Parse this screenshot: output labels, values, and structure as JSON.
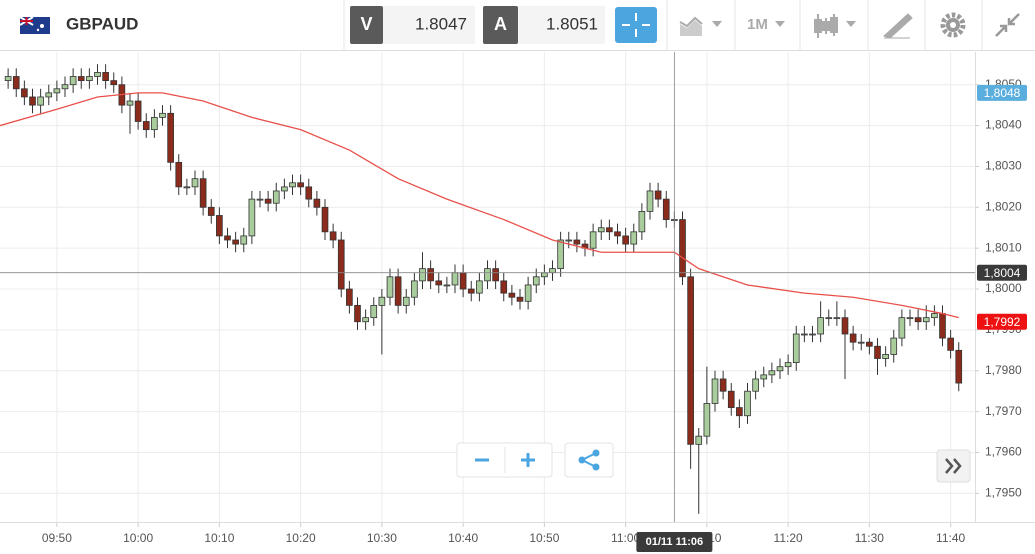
{
  "toolbar": {
    "symbol": "GBPAUD",
    "bid_label": "V",
    "bid": "1.8047",
    "ask_label": "A",
    "ask": "1.8051",
    "timeframe": "1M"
  },
  "chart_data": {
    "type": "candlestick",
    "x": [
      "09:44",
      "09:45",
      "09:46",
      "09:47",
      "09:48",
      "09:49",
      "09:50",
      "09:51",
      "09:52",
      "09:53",
      "09:54",
      "09:55",
      "09:56",
      "09:57",
      "09:58",
      "09:59",
      "10:00",
      "10:01",
      "10:02",
      "10:03",
      "10:04",
      "10:05",
      "10:06",
      "10:07",
      "10:08",
      "10:09",
      "10:10",
      "10:11",
      "10:12",
      "10:13",
      "10:14",
      "10:15",
      "10:16",
      "10:17",
      "10:18",
      "10:19",
      "10:20",
      "10:21",
      "10:22",
      "10:23",
      "10:24",
      "10:25",
      "10:26",
      "10:27",
      "10:28",
      "10:29",
      "10:30",
      "10:31",
      "10:32",
      "10:33",
      "10:34",
      "10:35",
      "10:36",
      "10:37",
      "10:38",
      "10:39",
      "10:40",
      "10:41",
      "10:42",
      "10:43",
      "10:44",
      "10:45",
      "10:46",
      "10:47",
      "10:48",
      "10:49",
      "10:50",
      "10:51",
      "10:52",
      "10:53",
      "10:54",
      "10:55",
      "10:56",
      "10:57",
      "10:58",
      "10:59",
      "11:00",
      "11:01",
      "11:02",
      "11:03",
      "11:04",
      "11:05",
      "11:06",
      "11:07",
      "11:08",
      "11:09",
      "11:10",
      "11:11",
      "11:12",
      "11:13",
      "11:14",
      "11:15",
      "11:16",
      "11:17",
      "11:18",
      "11:19",
      "11:20",
      "11:21",
      "11:22",
      "11:23",
      "11:24",
      "11:25",
      "11:26",
      "11:27",
      "11:28",
      "11:29",
      "11:30",
      "11:31",
      "11:32",
      "11:33",
      "11:34",
      "11:35",
      "11:36",
      "11:37",
      "11:38",
      "11:39",
      "11:40",
      "11:41"
    ],
    "open": [
      1.8051,
      1.8052,
      1.8049,
      1.8047,
      1.8045,
      1.8047,
      1.8048,
      1.8049,
      1.805,
      1.8052,
      1.8051,
      1.8052,
      1.8053,
      1.8051,
      1.805,
      1.8045,
      1.8046,
      1.8041,
      1.8039,
      1.8042,
      1.8043,
      1.8031,
      1.8025,
      1.8025,
      1.8027,
      1.802,
      1.8018,
      1.8013,
      1.8012,
      1.8011,
      1.8013,
      1.8022,
      1.8022,
      1.8021,
      1.8024,
      1.8025,
      1.8026,
      1.8025,
      1.8022,
      1.802,
      1.8014,
      1.8012,
      1.8,
      1.7996,
      1.7992,
      1.7993,
      1.7996,
      1.7998,
      1.8003,
      1.7996,
      1.7998,
      1.8002,
      1.8005,
      1.8002,
      1.8001,
      1.8001,
      1.8004,
      1.8,
      1.7999,
      1.8002,
      1.8005,
      1.8002,
      1.7999,
      1.7998,
      1.7997,
      1.8001,
      1.8003,
      1.8004,
      1.8005,
      1.8012,
      1.8012,
      1.8011,
      1.801,
      1.8014,
      1.8015,
      1.8014,
      1.8013,
      1.8011,
      1.8014,
      1.8019,
      1.8024,
      1.8022,
      1.8017,
      1.8017,
      1.8003,
      1.7962,
      1.7964,
      1.7972,
      1.7978,
      1.7975,
      1.7971,
      1.7969,
      1.7975,
      1.7978,
      1.7979,
      1.798,
      1.7981,
      1.7982,
      1.7989,
      1.7989,
      1.7989,
      1.7993,
      1.7993,
      1.7993,
      1.7989,
      1.7987,
      1.7987,
      1.7986,
      1.7983,
      1.7984,
      1.7988,
      1.7993,
      1.7993,
      1.7992,
      1.7993,
      1.7994,
      1.7988,
      1.7985
    ],
    "high": [
      1.8054,
      1.8054,
      1.8051,
      1.8049,
      1.8049,
      1.805,
      1.8051,
      1.8052,
      1.8054,
      1.8054,
      1.8054,
      1.8055,
      1.8055,
      1.8053,
      1.8052,
      1.8048,
      1.8048,
      1.8043,
      1.8044,
      1.8045,
      1.8045,
      1.8033,
      1.8027,
      1.8029,
      1.8029,
      1.8022,
      1.802,
      1.8015,
      1.8014,
      1.8015,
      1.8024,
      1.8024,
      1.8024,
      1.8026,
      1.8027,
      1.8028,
      1.8028,
      1.8027,
      1.8024,
      1.8022,
      1.8016,
      1.8014,
      1.8002,
      1.7998,
      1.7995,
      1.7998,
      1.8,
      1.8005,
      1.8005,
      1.8,
      1.8004,
      1.8009,
      1.8007,
      1.8004,
      1.8003,
      1.8006,
      1.8006,
      1.8002,
      1.8004,
      1.8007,
      1.8007,
      1.8004,
      1.8001,
      1.8,
      1.8003,
      1.8005,
      1.8006,
      1.8007,
      1.8014,
      1.8014,
      1.8014,
      1.8012,
      1.8016,
      1.8017,
      1.8017,
      1.8016,
      1.8015,
      1.8016,
      1.8021,
      1.8026,
      1.8026,
      1.8024,
      1.8019,
      1.8019,
      1.8005,
      1.7966,
      1.7981,
      1.798,
      1.798,
      1.7977,
      1.7973,
      1.7977,
      1.798,
      1.7981,
      1.7982,
      1.7983,
      1.7984,
      1.7991,
      1.7991,
      1.7991,
      1.7997,
      1.7995,
      1.7997,
      1.7995,
      1.7991,
      1.7989,
      1.7988,
      1.7988,
      1.7986,
      1.799,
      1.7995,
      1.7995,
      1.7995,
      1.7996,
      1.7996,
      1.7996,
      1.799,
      1.7987
    ],
    "low": [
      1.8049,
      1.8047,
      1.8045,
      1.8043,
      1.8043,
      1.8045,
      1.8046,
      1.8047,
      1.8048,
      1.8049,
      1.8049,
      1.805,
      1.8049,
      1.8048,
      1.8043,
      1.8038,
      1.8039,
      1.8037,
      1.8037,
      1.804,
      1.8029,
      1.8023,
      1.8023,
      1.8023,
      1.8018,
      1.8016,
      1.8011,
      1.801,
      1.8009,
      1.8009,
      1.8011,
      1.802,
      1.8019,
      1.8019,
      1.8022,
      1.8023,
      1.8023,
      1.802,
      1.8018,
      1.8012,
      1.801,
      1.7998,
      1.7994,
      1.799,
      1.799,
      1.7991,
      1.7984,
      1.7996,
      1.7994,
      1.7994,
      1.7996,
      1.8,
      1.8,
      1.7999,
      1.7999,
      1.7999,
      1.7998,
      1.7997,
      1.7997,
      1.8,
      1.8,
      1.7997,
      1.7996,
      1.7995,
      1.7995,
      1.7999,
      1.8001,
      1.8002,
      1.8003,
      1.801,
      1.8009,
      1.8008,
      1.8008,
      1.8012,
      1.8012,
      1.8011,
      1.8009,
      1.8009,
      1.8012,
      1.8017,
      1.802,
      1.8015,
      1.8015,
      1.8001,
      1.7956,
      1.7945,
      1.7962,
      1.797,
      1.7973,
      1.7969,
      1.7966,
      1.7967,
      1.7973,
      1.7976,
      1.7977,
      1.7978,
      1.7979,
      1.798,
      1.7987,
      1.7987,
      1.7987,
      1.7991,
      1.7991,
      1.7978,
      1.7985,
      1.7985,
      1.7984,
      1.7979,
      1.7981,
      1.7982,
      1.7986,
      1.7991,
      1.799,
      1.799,
      1.7991,
      1.7986,
      1.7983,
      1.7975
    ],
    "close": [
      1.8052,
      1.8049,
      1.8047,
      1.8045,
      1.8047,
      1.8048,
      1.8049,
      1.805,
      1.8052,
      1.8051,
      1.8052,
      1.8053,
      1.8051,
      1.805,
      1.8045,
      1.8046,
      1.8041,
      1.8039,
      1.8042,
      1.8043,
      1.8031,
      1.8025,
      1.8025,
      1.8027,
      1.802,
      1.8018,
      1.8013,
      1.8012,
      1.8011,
      1.8013,
      1.8022,
      1.8022,
      1.8021,
      1.8024,
      1.8025,
      1.8026,
      1.8025,
      1.8022,
      1.802,
      1.8014,
      1.8012,
      1.8,
      1.7996,
      1.7992,
      1.7993,
      1.7996,
      1.7998,
      1.8003,
      1.7996,
      1.7998,
      1.8002,
      1.8005,
      1.8002,
      1.8001,
      1.8001,
      1.8004,
      1.8,
      1.7999,
      1.8002,
      1.8005,
      1.8002,
      1.7999,
      1.7998,
      1.7997,
      1.8001,
      1.8003,
      1.8004,
      1.8005,
      1.8012,
      1.8012,
      1.8011,
      1.801,
      1.8014,
      1.8015,
      1.8014,
      1.8013,
      1.8011,
      1.8014,
      1.8019,
      1.8024,
      1.8022,
      1.8017,
      1.8017,
      1.8003,
      1.7962,
      1.7964,
      1.7972,
      1.7978,
      1.7975,
      1.7971,
      1.7969,
      1.7975,
      1.7978,
      1.7979,
      1.798,
      1.7981,
      1.7982,
      1.7989,
      1.7989,
      1.7989,
      1.7993,
      1.7993,
      1.7993,
      1.7989,
      1.7987,
      1.7987,
      1.7986,
      1.7983,
      1.7984,
      1.7988,
      1.7993,
      1.7993,
      1.7992,
      1.7993,
      1.7994,
      1.7988,
      1.7985,
      1.7977
    ],
    "up_color": "#a8cc9c",
    "down_color": "#8b2b1c",
    "moving_average": {
      "color": "#e8504a",
      "x": [
        "09:43",
        "09:50",
        "09:55",
        "10:00",
        "10:03",
        "10:08",
        "10:14",
        "10:20",
        "10:26",
        "10:32",
        "10:38",
        "10:45",
        "10:51",
        "10:57",
        "11:02",
        "11:06",
        "11:09",
        "11:15",
        "11:22",
        "11:28",
        "11:34",
        "11:39",
        "11:41"
      ],
      "values": [
        1.804,
        1.8044,
        1.8047,
        1.8048,
        1.8048,
        1.8046,
        1.8042,
        1.8039,
        1.8034,
        1.8027,
        1.8022,
        1.8017,
        1.8012,
        1.8009,
        1.8009,
        1.8009,
        1.8005,
        1.8001,
        1.7999,
        1.7998,
        1.7996,
        1.7994,
        1.7993
      ]
    },
    "xlim": [
      "09:43",
      "11:43"
    ],
    "xticks": [
      "09:50",
      "10:00",
      "10:10",
      "10:20",
      "10:30",
      "10:40",
      "10:50",
      "11:00",
      "11:10",
      "11:20",
      "11:30",
      "11:40"
    ],
    "ylim": [
      1.7943,
      1.8058
    ],
    "yticks": [
      {
        "value": 1.805,
        "label": "1,8050"
      },
      {
        "value": 1.804,
        "label": "1,8040"
      },
      {
        "value": 1.803,
        "label": "1,8030"
      },
      {
        "value": 1.802,
        "label": "1,8020"
      },
      {
        "value": 1.801,
        "label": "1,8010"
      },
      {
        "value": 1.8,
        "label": "1,8000"
      },
      {
        "value": 1.799,
        "label": "1,7990"
      },
      {
        "value": 1.798,
        "label": "1,7980"
      },
      {
        "value": 1.797,
        "label": "1,7970"
      },
      {
        "value": 1.796,
        "label": "1,7960"
      },
      {
        "value": 1.795,
        "label": "1,7950"
      }
    ],
    "grid": true,
    "price_tags": [
      {
        "value": 1.8048,
        "label": "1,8048",
        "color": "#5aaedd"
      },
      {
        "value": 1.8004,
        "label": "1,8004",
        "color": "#3a3a3a"
      },
      {
        "value": 1.7992,
        "label": "1,7992",
        "color": "#ee1111"
      }
    ],
    "crosshair": {
      "x": "11:06",
      "label": "01/11 11:06",
      "y": 1.8004
    }
  }
}
